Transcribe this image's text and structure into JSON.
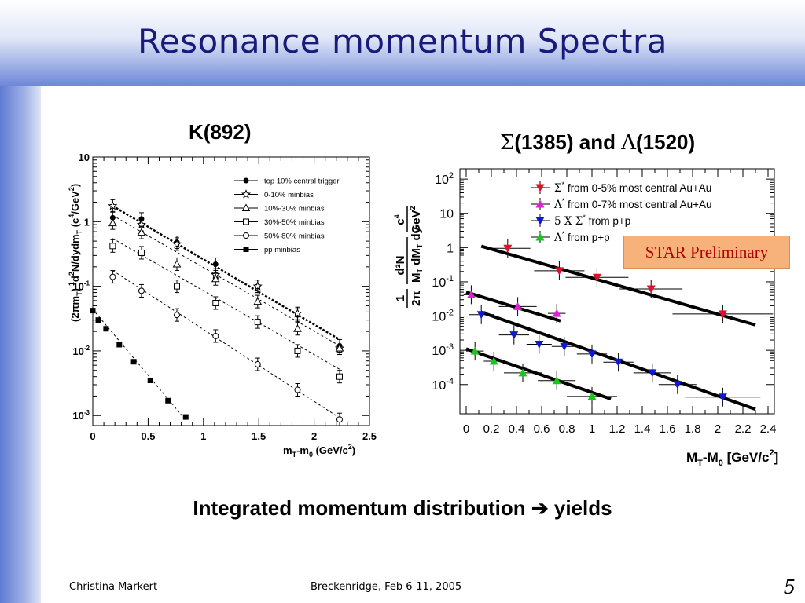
{
  "slide": {
    "title": "Resonance momentum Spectra",
    "subtitle_left": "K(892)",
    "subtitle_right_sigma": "Σ",
    "subtitle_right_mid": "(1385) and ",
    "subtitle_right_lambda": "Λ",
    "subtitle_right_end": "(1520)",
    "caption_start": "Integrated momentum distribution ",
    "caption_arrow": "➔",
    "caption_end": " yields",
    "footer_author": "Christina Markert",
    "footer_event": "Breckenridge, Feb 6-11, 2005",
    "page_number": "5",
    "preliminary_label": "STAR Preliminary"
  },
  "chart_data": [
    {
      "type": "scatter",
      "title": "K(892)",
      "xlabel": "m",
      "xlabel_sub1": "T",
      "xlabel_mid": "-m",
      "xlabel_sub2": "0",
      "xlabel_end": " (GeV/c",
      "xlabel_sup": "2",
      "xlabel_close": ")",
      "ylabel": "(2πm",
      "ylabel_sub1": "T",
      "ylabel_sup1": "-1",
      "ylabel_mid": "d",
      "ylabel_sup2": "2",
      "ylabel_mid2": "N/dydm",
      "ylabel_sub2": "T",
      "ylabel_end": " (c",
      "ylabel_sup3": "4",
      "ylabel_close": "/GeV",
      "ylabel_sup4": "2",
      "ylabel_final": ")",
      "xlim": [
        0,
        2.5
      ],
      "ylim": [
        0.0007,
        10
      ],
      "yscale": "log",
      "xticks": [
        "0",
        "0.5",
        "1",
        "1.5",
        "2",
        "2.5"
      ],
      "yticks": [
        {
          "base": "10",
          "exp": "",
          "value": 10
        },
        {
          "base": "1",
          "exp": "",
          "value": 1
        },
        {
          "base": "10",
          "exp": "-1",
          "value": 0.1
        },
        {
          "base": "10",
          "exp": "-2",
          "value": 0.01
        },
        {
          "base": "10",
          "exp": "-3",
          "value": 0.001
        }
      ],
      "legend_position": "top-right",
      "series": [
        {
          "name": "top 10% central trigger",
          "marker": "filled-circle",
          "x": [
            0.18,
            0.44,
            0.76,
            1.11,
            1.49,
            1.85,
            2.23
          ],
          "y": [
            1.15,
            1.1,
            0.48,
            0.22,
            0.1,
            0.036,
            0.012
          ],
          "fit": [
            [
              0.18,
              1.75
            ],
            [
              2.23,
              0.015
            ]
          ]
        },
        {
          "name": "0-10% minbias",
          "marker": "open-star",
          "x": [
            0.18,
            0.44,
            0.76,
            1.11,
            1.49,
            1.85,
            2.23
          ],
          "y": [
            1.75,
            0.9,
            0.45,
            0.15,
            0.1,
            0.038,
            0.011
          ]
        },
        {
          "name": "10%-30% minbias",
          "marker": "open-triangle",
          "x": [
            0.18,
            0.44,
            0.76,
            1.11,
            1.49,
            1.85,
            2.23
          ],
          "y": [
            0.95,
            0.68,
            0.22,
            0.13,
            0.058,
            0.022,
            0.011
          ],
          "fit": [
            [
              0.18,
              1.25
            ],
            [
              2.23,
              0.012
            ]
          ]
        },
        {
          "name": "30%-50% minbias",
          "marker": "open-square",
          "x": [
            0.18,
            0.44,
            0.76,
            1.11,
            1.49,
            1.85,
            2.23
          ],
          "y": [
            0.42,
            0.33,
            0.1,
            0.055,
            0.028,
            0.01,
            0.004
          ],
          "fit": [
            [
              0.18,
              0.55
            ],
            [
              2.23,
              0.0052
            ]
          ]
        },
        {
          "name": "50%-80% minbias",
          "marker": "open-circle",
          "x": [
            0.18,
            0.44,
            0.76,
            1.11,
            1.49,
            1.85,
            2.23
          ],
          "y": [
            0.14,
            0.085,
            0.036,
            0.017,
            0.0062,
            0.0025,
            0.00087
          ],
          "fit": [
            [
              0.18,
              0.175
            ],
            [
              2.23,
              0.00092
            ]
          ]
        },
        {
          "name": "pp minbias",
          "marker": "filled-square",
          "x": [
            0.0,
            0.05,
            0.12,
            0.24,
            0.37,
            0.52,
            0.68,
            0.84
          ],
          "y": [
            0.042,
            0.03,
            0.022,
            0.0125,
            0.0068,
            0.0035,
            0.0017,
            0.00095
          ],
          "fit": [
            [
              0.0,
              0.044
            ],
            [
              0.84,
              0.00085
            ]
          ]
        }
      ]
    },
    {
      "type": "scatter",
      "title": "Σ(1385) and Λ(1520)",
      "xlabel": "M",
      "xlabel_sub1": "T",
      "xlabel_mid": "-M",
      "xlabel_sub2": "0",
      "xlabel_end": " [GeV/c",
      "xlabel_sup": "2",
      "xlabel_close": "]",
      "ylabel_num_left": "1",
      "ylabel_den_left": "2π",
      "ylabel_num_mid": "d²N",
      "ylabel_den_mid": "M",
      "ylabel_den_mid_sub": "T",
      "ylabel_den_mid2": " dM",
      "ylabel_den_mid2_sub": "T",
      "ylabel_den_mid3": " dy",
      "ylabel_num_right": "c",
      "ylabel_num_right_sup": "4",
      "ylabel_den_right": "GeV",
      "ylabel_den_right_sup": "2",
      "xlim": [
        -0.05,
        2.45
      ],
      "ylim": [
        1.4e-05,
        200
      ],
      "yscale": "log",
      "xticks": [
        "0",
        "0.2",
        "0.4",
        "0.6",
        "0.8",
        "1",
        "1.2",
        "1.4",
        "1.6",
        "1.8",
        "2",
        "2.2",
        "2.4"
      ],
      "yticks": [
        {
          "base": "10",
          "exp": "2",
          "value": 100
        },
        {
          "base": "10",
          "exp": "",
          "value": 10
        },
        {
          "base": "1",
          "exp": "",
          "value": 1
        },
        {
          "base": "10",
          "exp": "-1",
          "value": 0.1
        },
        {
          "base": "10",
          "exp": "-2",
          "value": 0.01
        },
        {
          "base": "10",
          "exp": "-3",
          "value": 0.001
        },
        {
          "base": "10",
          "exp": "-4",
          "value": 0.0001
        }
      ],
      "legend_position": "top-right",
      "series": [
        {
          "name_sym": "Σ",
          "name_sup": "*",
          "name_rest": " from 0-5% most central Au+Au",
          "color": "#e0102a",
          "marker": "down-triangle",
          "x": [
            0.33,
            0.74,
            1.04,
            1.47,
            2.04
          ],
          "y": [
            0.95,
            0.21,
            0.135,
            0.062,
            0.0115
          ],
          "xerr": [
            0.18,
            0.2,
            0.25,
            0.25,
            0.4
          ],
          "fit": [
            [
              0.12,
              1.1
            ],
            [
              2.3,
              0.0055
            ]
          ]
        },
        {
          "name_sym": "Λ",
          "name_sup": "*",
          "name_rest": " from 0-7% most central Au+Au",
          "color": "#e020d8",
          "marker": "up-triangle",
          "x": [
            0.04,
            0.41,
            0.72
          ],
          "y": [
            0.042,
            0.019,
            0.012
          ],
          "xerr": [
            0.06,
            0.15,
            0.07
          ],
          "fit": [
            [
              0.0,
              0.05
            ],
            [
              0.75,
              0.0072
            ]
          ]
        },
        {
          "name_sym": "5 X Σ",
          "name_sup": "*",
          "name_rest": " from p+p",
          "color": "#1018d8",
          "marker": "down-triangle",
          "x": [
            0.12,
            0.38,
            0.58,
            0.78,
            1.0,
            1.21,
            1.48,
            1.68,
            2.04
          ],
          "y": [
            0.011,
            0.0028,
            0.0015,
            0.0013,
            0.00078,
            0.00045,
            0.00022,
            0.0001,
            4.3e-05
          ],
          "xerr": [
            0.1,
            0.12,
            0.1,
            0.1,
            0.12,
            0.12,
            0.15,
            0.15,
            0.3
          ],
          "fit": [
            [
              0.12,
              0.013
            ],
            [
              2.3,
              1.9e-05
            ]
          ]
        },
        {
          "name_sym": "Λ",
          "name_sup": "*",
          "name_rest": " from p+p",
          "color": "#18c818",
          "marker": "up-triangle",
          "x": [
            0.07,
            0.22,
            0.45,
            0.72,
            1.0
          ],
          "y": [
            0.00095,
            0.00048,
            0.00022,
            0.00013,
            4.5e-05
          ],
          "xerr": [
            0.07,
            0.08,
            0.15,
            0.15,
            0.2
          ],
          "fit": [
            [
              0.0,
              0.0011
            ],
            [
              1.15,
              3.8e-05
            ]
          ]
        }
      ]
    }
  ]
}
